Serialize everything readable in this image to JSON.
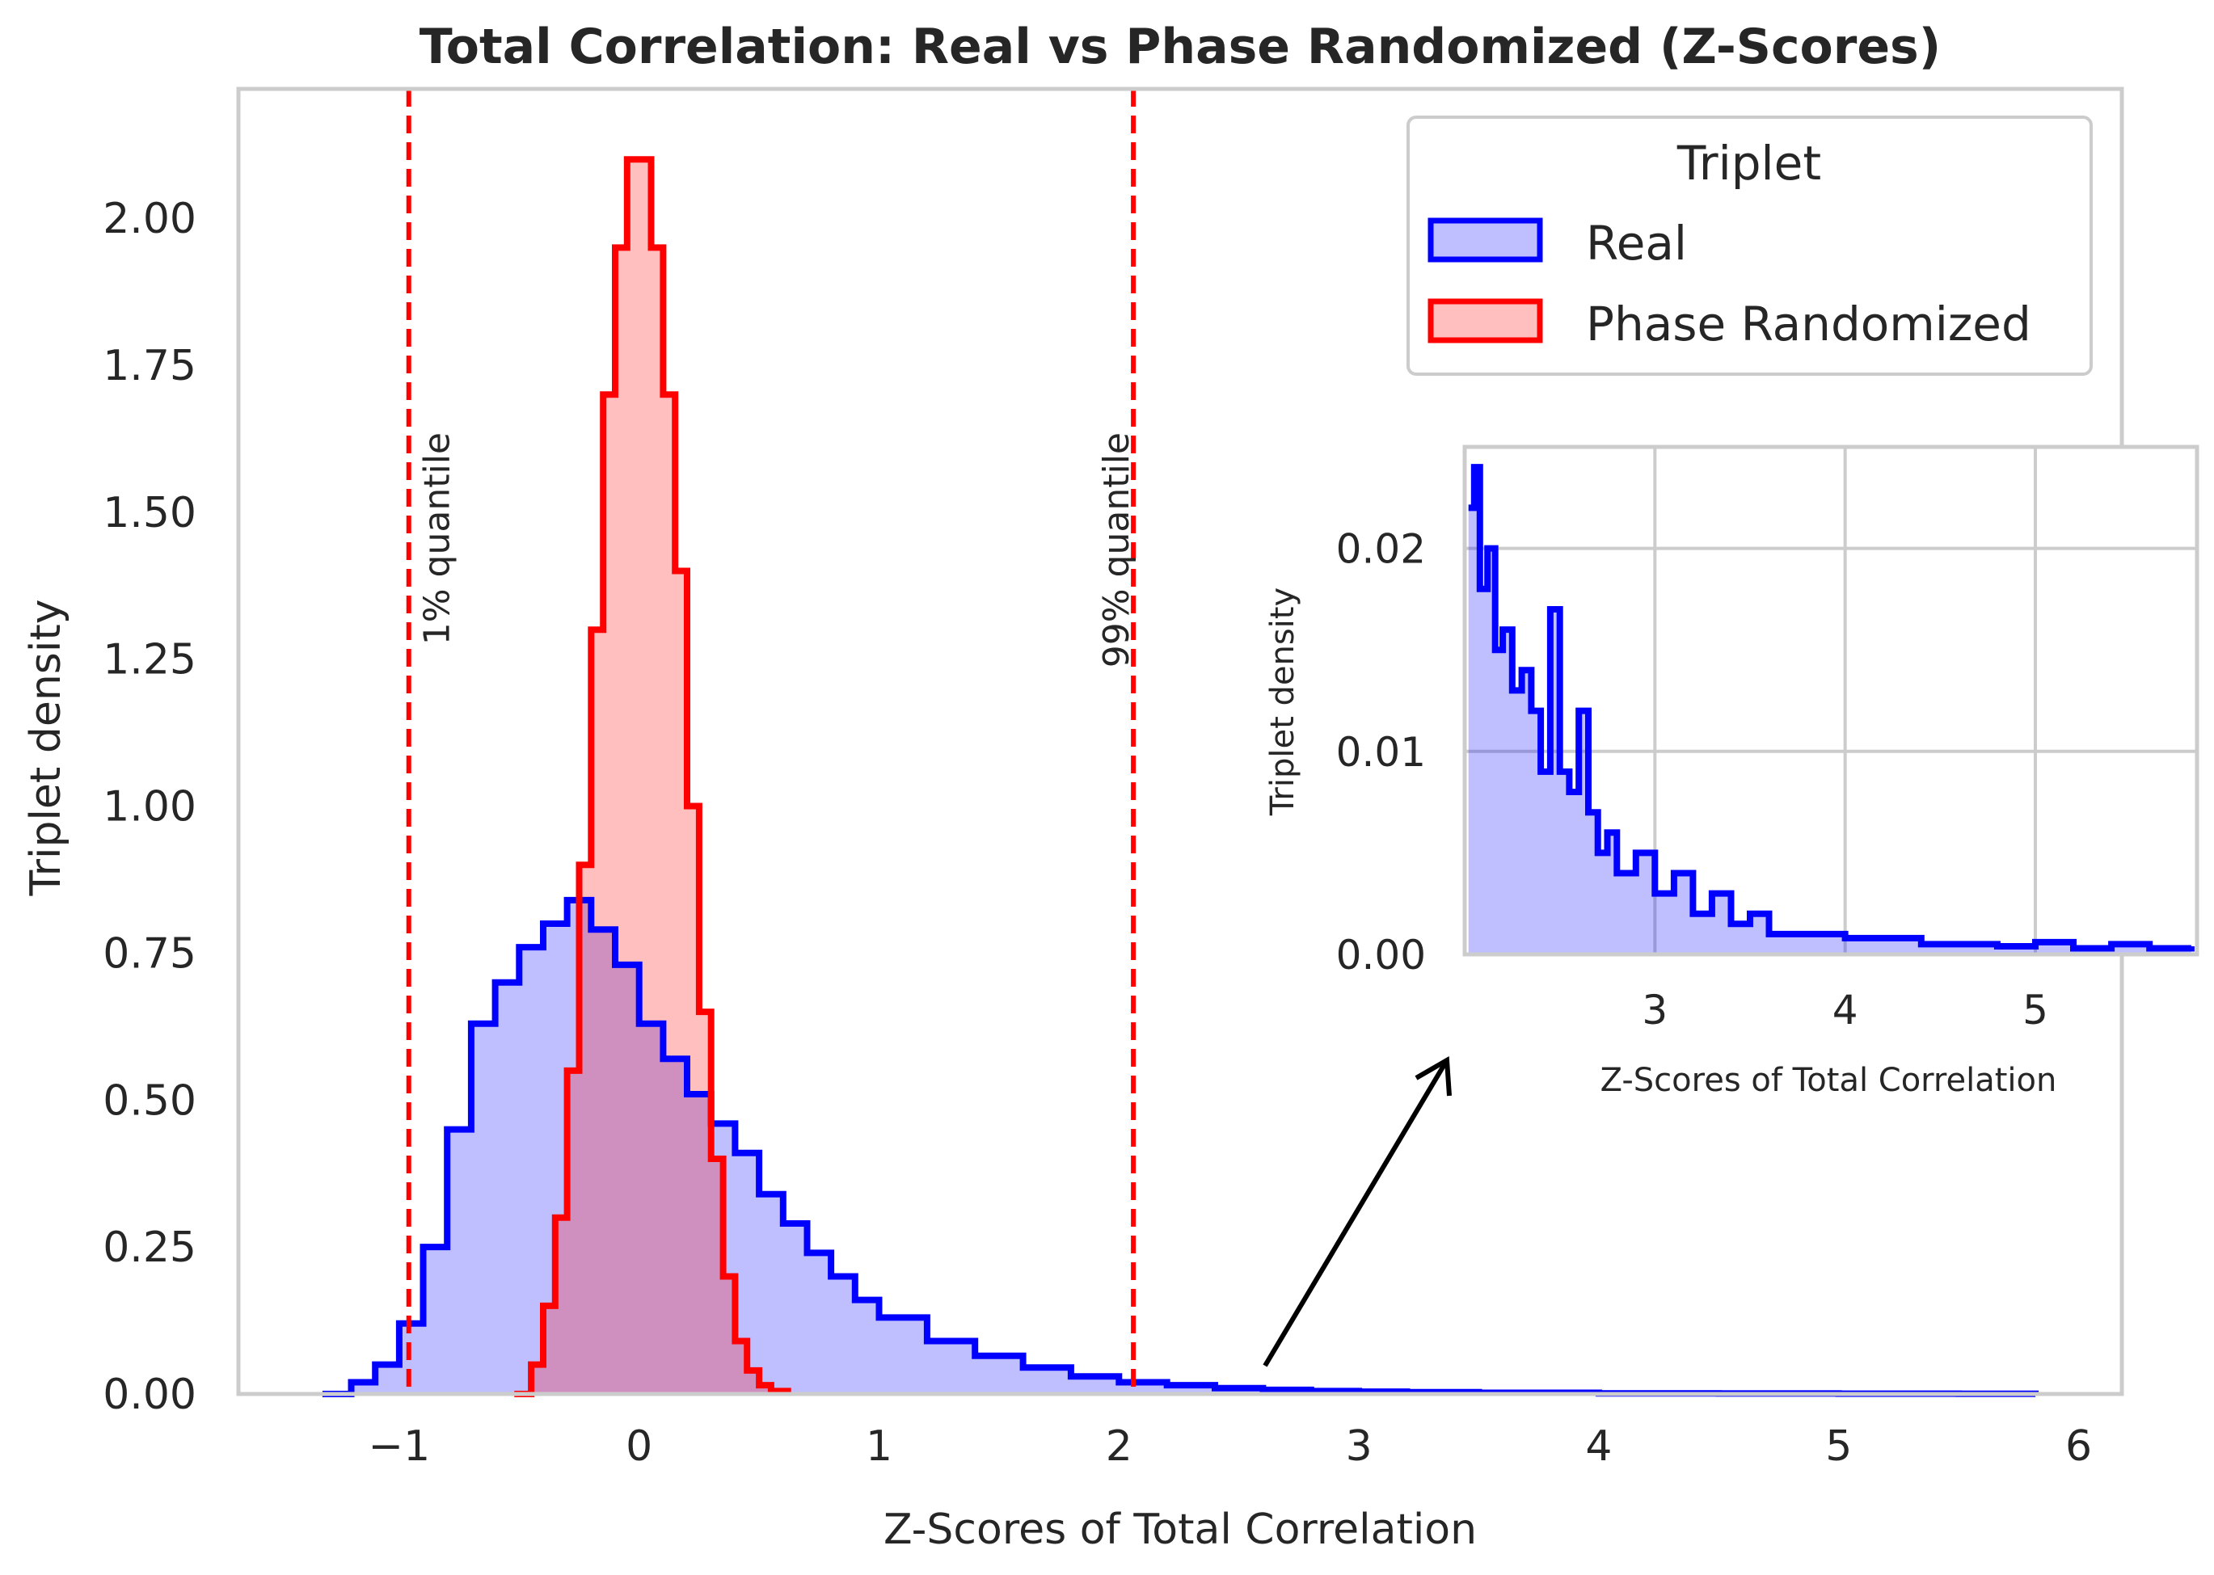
{
  "chart_data": [
    {
      "type": "area",
      "title": "Total Correlation: Real vs Phase Randomized (Z-Scores)",
      "xlabel": "Z-Scores of Total Correlation",
      "ylabel": "Triplet density",
      "xlim": [
        -1.67,
        6.18
      ],
      "ylim": [
        0,
        2.22
      ],
      "xticks": [
        -1,
        0,
        1,
        2,
        3,
        4,
        5,
        6
      ],
      "xtick_labels": [
        "−1",
        "0",
        "1",
        "2",
        "3",
        "4",
        "5",
        "6"
      ],
      "yticks": [
        0,
        0.25,
        0.5,
        0.75,
        1.0,
        1.25,
        1.5,
        1.75,
        2.0
      ],
      "ytick_labels": [
        "0.00",
        "0.25",
        "0.50",
        "0.75",
        "1.00",
        "1.25",
        "1.50",
        "1.75",
        "2.00"
      ],
      "grid": false,
      "legend": {
        "title": "Triplet",
        "position": "top-right"
      },
      "series": [
        {
          "name": "Real",
          "stroke": "#0000ff",
          "fill": "#0000ff",
          "fill_opacity": 0.25,
          "x": [
            -1.32,
            -1.2,
            -1.1,
            -1.0,
            -0.9,
            -0.8,
            -0.7,
            -0.6,
            -0.5,
            -0.4,
            -0.3,
            -0.2,
            -0.1,
            0.0,
            0.1,
            0.2,
            0.3,
            0.4,
            0.5,
            0.6,
            0.7,
            0.8,
            0.9,
            1.0,
            1.2,
            1.4,
            1.6,
            1.8,
            2.0,
            2.2,
            2.4,
            2.6,
            2.8,
            3.0,
            3.2,
            3.5,
            4.0,
            4.5,
            5.0,
            5.5,
            5.82
          ],
          "y": [
            0.0,
            0.02,
            0.05,
            0.12,
            0.25,
            0.45,
            0.63,
            0.7,
            0.76,
            0.8,
            0.84,
            0.79,
            0.73,
            0.63,
            0.57,
            0.51,
            0.46,
            0.41,
            0.34,
            0.29,
            0.24,
            0.2,
            0.16,
            0.13,
            0.09,
            0.065,
            0.045,
            0.03,
            0.02,
            0.015,
            0.01,
            0.007,
            0.005,
            0.004,
            0.003,
            0.002,
            0.001,
            0.0008,
            0.0005,
            0.0003,
            0.0
          ]
        },
        {
          "name": "Phase Randomized",
          "stroke": "#ff0000",
          "fill": "#ff0000",
          "fill_opacity": 0.25,
          "x": [
            -0.52,
            -0.45,
            -0.4,
            -0.35,
            -0.3,
            -0.25,
            -0.2,
            -0.15,
            -0.1,
            -0.05,
            0.0,
            0.05,
            0.1,
            0.15,
            0.2,
            0.25,
            0.3,
            0.35,
            0.4,
            0.45,
            0.5,
            0.55,
            0.62
          ],
          "y": [
            0.0,
            0.05,
            0.15,
            0.3,
            0.55,
            0.9,
            1.3,
            1.7,
            1.95,
            2.1,
            2.1,
            1.95,
            1.7,
            1.4,
            1.0,
            0.65,
            0.4,
            0.2,
            0.09,
            0.04,
            0.015,
            0.005,
            0.0
          ]
        }
      ],
      "reference_lines": [
        {
          "x": -0.96,
          "label": "1% quantile",
          "color": "#ff0000",
          "style": "dashed"
        },
        {
          "x": 2.06,
          "label": "99% quantile",
          "color": "#ff0000",
          "style": "dashed"
        }
      ]
    },
    {
      "type": "area",
      "panel": "inset",
      "xlabel": "Z-Scores of Total Correlation",
      "ylabel": "Triplet density",
      "xlim": [
        2.0,
        5.85
      ],
      "ylim": [
        0,
        0.025
      ],
      "xticks": [
        3,
        4,
        5
      ],
      "xtick_labels": [
        "3",
        "4",
        "5"
      ],
      "yticks": [
        0,
        0.01,
        0.02
      ],
      "ytick_labels": [
        "0.00",
        "0.01",
        "0.02"
      ],
      "grid": true,
      "series": [
        {
          "name": "Real",
          "stroke": "#0000ff",
          "fill": "#0000ff",
          "fill_opacity": 0.25,
          "x": [
            2.02,
            2.05,
            2.08,
            2.12,
            2.16,
            2.2,
            2.25,
            2.3,
            2.35,
            2.4,
            2.45,
            2.5,
            2.55,
            2.6,
            2.65,
            2.7,
            2.75,
            2.8,
            2.9,
            3.0,
            3.1,
            3.2,
            3.3,
            3.4,
            3.5,
            3.6,
            3.8,
            4.0,
            4.2,
            4.4,
            4.6,
            4.8,
            5.0,
            5.2,
            5.4,
            5.6,
            5.82
          ],
          "y": [
            0.022,
            0.024,
            0.018,
            0.02,
            0.015,
            0.016,
            0.013,
            0.014,
            0.012,
            0.009,
            0.017,
            0.009,
            0.008,
            0.012,
            0.007,
            0.005,
            0.006,
            0.004,
            0.005,
            0.003,
            0.004,
            0.002,
            0.003,
            0.0015,
            0.002,
            0.001,
            0.001,
            0.0008,
            0.0008,
            0.0005,
            0.0005,
            0.0004,
            0.0006,
            0.0003,
            0.0005,
            0.0003,
            0.0004
          ]
        }
      ]
    }
  ]
}
